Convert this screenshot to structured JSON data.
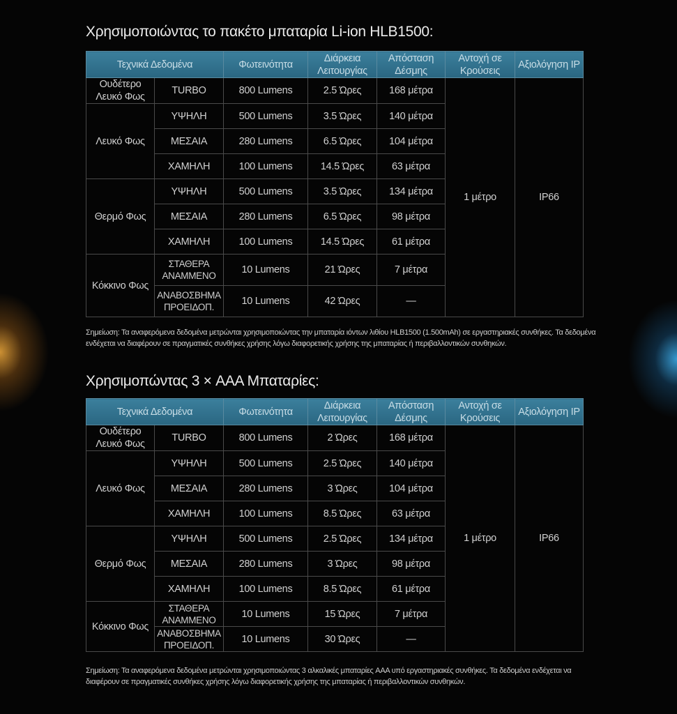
{
  "colors": {
    "header_bg": "#2f6f8c",
    "background": "#050505",
    "glow_left": "#f0aa3c",
    "glow_right": "#3caae6"
  },
  "headers": [
    "Τεχνικά Δεδομένα",
    "Φωτεινότητα",
    "Διάρκεια Λειτουργίας",
    "Απόσταση Δέσμης",
    "Αντοχή σε Κρούσεις",
    "Αξιολόγηση IP"
  ],
  "sections": [
    {
      "title": "Χρησιμοποιώντας το πακέτο μπαταρία Li-ion HLB1500:",
      "impact": "1 μέτρο",
      "ip": "IP66",
      "groups": [
        {
          "name": "Ουδέτερο Λευκό Φως",
          "rows": [
            {
              "mode": "TURBO",
              "lumens": "800 Lumens",
              "runtime": "2.5 Ώρες",
              "distance": "168 μέτρα"
            }
          ]
        },
        {
          "name": "Λευκό Φως",
          "rows": [
            {
              "mode": "ΥΨΗΛΗ",
              "lumens": "500 Lumens",
              "runtime": "3.5 Ώρες",
              "distance": "140 μέτρα"
            },
            {
              "mode": "ΜΕΣΑΙΑ",
              "lumens": "280 Lumens",
              "runtime": "6.5 Ώρες",
              "distance": "104 μέτρα"
            },
            {
              "mode": "ΧΑΜΗΛΗ",
              "lumens": "100 Lumens",
              "runtime": "14.5 Ώρες",
              "distance": "63 μέτρα"
            }
          ]
        },
        {
          "name": "Θερμό Φως",
          "rows": [
            {
              "mode": "ΥΨΗΛΗ",
              "lumens": "500 Lumens",
              "runtime": "3.5 Ώρες",
              "distance": "134 μέτρα"
            },
            {
              "mode": "ΜΕΣΑΙΑ",
              "lumens": "280 Lumens",
              "runtime": "6.5 Ώρες",
              "distance": "98 μέτρα"
            },
            {
              "mode": "ΧΑΜΗΛΗ",
              "lumens": "100 Lumens",
              "runtime": "14.5 Ώρες",
              "distance": "61 μέτρα"
            }
          ]
        },
        {
          "name": "Κόκκινο Φως",
          "rows": [
            {
              "mode": "ΣΤΑΘΕΡΑ ΑΝΑΜΜΕΝΟ",
              "lumens": "10 Lumens",
              "runtime": "21 Ώρες",
              "distance": "7 μέτρα"
            },
            {
              "mode": "ΑΝΑΒΟΣΒΗΜΑ ΠΡΟΕΙΔΟΠ.",
              "lumens": "10 Lumens",
              "runtime": "42 Ώρες",
              "distance": "—"
            }
          ]
        }
      ],
      "note": "Σημείωση: Τα αναφερόμενα δεδομένα μετρώνται χρησιμοποιώντας την μπαταρία ιόντων λιθίου HLB1500 (1.500mAh) σε εργαστηριακές συνθήκες. Τα δεδομένα ενδέχεται να διαφέρουν σε πραγματικές συνθήκες χρήσης λόγω διαφορετικής χρήσης της μπαταρίας ή περιβαλλοντικών συνθηκών."
    },
    {
      "title": "Χρησιμοπώντας 3 × AAA Μπαταρίες:",
      "impact": "1 μέτρο",
      "ip": "IP66",
      "groups": [
        {
          "name": "Ουδέτερο Λευκό Φως",
          "rows": [
            {
              "mode": "TURBO",
              "lumens": "800 Lumens",
              "runtime": "2 Ώρες",
              "distance": "168 μέτρα"
            }
          ]
        },
        {
          "name": "Λευκό Φως",
          "rows": [
            {
              "mode": "ΥΨΗΛΗ",
              "lumens": "500 Lumens",
              "runtime": "2.5 Ώρες",
              "distance": "140 μέτρα"
            },
            {
              "mode": "ΜΕΣΑΙΑ",
              "lumens": "280 Lumens",
              "runtime": "3 Ώρες",
              "distance": "104 μέτρα"
            },
            {
              "mode": "ΧΑΜΗΛΗ",
              "lumens": "100 Lumens",
              "runtime": "8.5 Ώρες",
              "distance": "63 μέτρα"
            }
          ]
        },
        {
          "name": "Θερμό Φως",
          "rows": [
            {
              "mode": "ΥΨΗΛΗ",
              "lumens": "500 Lumens",
              "runtime": "2.5 Ώρες",
              "distance": "134 μέτρα"
            },
            {
              "mode": "ΜΕΣΑΙΑ",
              "lumens": "280 Lumens",
              "runtime": "3 Ώρες",
              "distance": "98 μέτρα"
            },
            {
              "mode": "ΧΑΜΗΛΗ",
              "lumens": "100 Lumens",
              "runtime": "8.5 Ώρες",
              "distance": "61 μέτρα"
            }
          ]
        },
        {
          "name": "Κόκκινο Φως",
          "rows": [
            {
              "mode": "ΣΤΑΘΕΡΑ ΑΝΑΜΜΕΝΟ",
              "lumens": "10 Lumens",
              "runtime": "15 Ώρες",
              "distance": "7 μέτρα"
            },
            {
              "mode": "ΑΝΑΒΟΣΒΗΜΑ ΠΡΟΕΙΔΟΠ.",
              "lumens": "10 Lumens",
              "runtime": "30 Ώρες",
              "distance": "—"
            }
          ]
        }
      ],
      "note": "Σημείωση: Τα αναφερόμενα δεδομένα μετρώνται χρησιμοποιώντας 3 αλκαλικές μπαταρίες AAA υπό εργαστηριακές συνθήκες. Τα δεδομένα ενδέχεται να διαφέρουν σε πραγματικές συνθήκες χρήσης λόγω διαφορετικής χρήσης της μπαταρίας ή περιβαλλοντικών συνθηκών."
    }
  ]
}
